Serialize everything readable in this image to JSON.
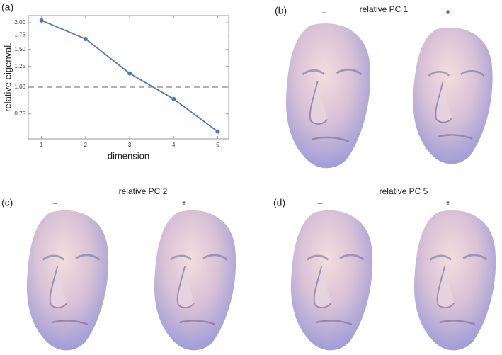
{
  "chart_data": {
    "type": "line",
    "panel_label": "(a)",
    "x_label": "dimension",
    "y_label": "relative eigenval.",
    "x": [
      1,
      2,
      3,
      4,
      5
    ],
    "series": [
      {
        "color": "#4a78c0",
        "values": [
          2.05,
          1.68,
          1.16,
          0.88,
          0.62
        ]
      }
    ],
    "xlim": [
      0.7,
      5.25
    ],
    "xticks": [
      1,
      2,
      3,
      4,
      5
    ],
    "ylim": [
      0.573,
      2.16
    ],
    "y_scale": "log",
    "yticks": [
      0.75,
      {
        "value": 1,
        "label": "1.00"
      },
      1.25,
      {
        "value": 1.5,
        "label": "1.50"
      },
      1.75,
      {
        "value": 2,
        "label": "2.00"
      }
    ],
    "reference_line": {
      "value": 1,
      "color": "#666666"
    }
  },
  "panels": [
    {
      "label": "(b)",
      "title": "relative PC 1",
      "minus": "–",
      "plus": "+"
    },
    {
      "label": "(c)",
      "title": "relative PC 2",
      "minus": "–",
      "plus": "+"
    },
    {
      "label": "(d)",
      "title": "relative PC 5",
      "minus": "–",
      "plus": "+"
    }
  ]
}
